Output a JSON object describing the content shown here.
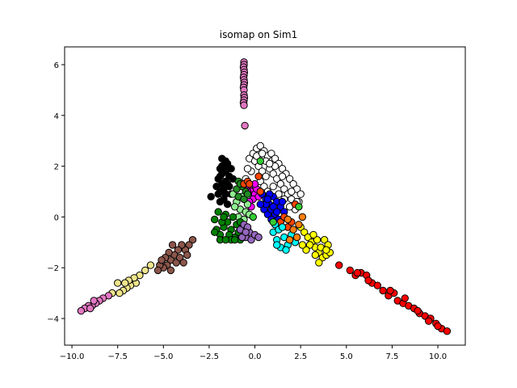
{
  "chart_data": {
    "type": "scatter",
    "title": "isomap on Sim1",
    "xlabel": "",
    "ylabel": "",
    "xlim": [
      -10.4,
      11.5
    ],
    "ylim": [
      -5.05,
      6.7
    ],
    "x_ticks": [
      -10.0,
      -7.5,
      -5.0,
      -2.5,
      0.0,
      2.5,
      5.0,
      7.5,
      10.0
    ],
    "x_tick_labels": [
      "−10.0",
      "−7.5",
      "−5.0",
      "−2.5",
      "0.0",
      "2.5",
      "5.0",
      "7.5",
      "10.0"
    ],
    "y_ticks": [
      -4,
      -2,
      0,
      2,
      4,
      6
    ],
    "y_tick_labels": [
      "−4",
      "−2",
      "0",
      "2",
      "4",
      "6"
    ],
    "grid": false,
    "legend": false,
    "marker_edge_color": "#000000",
    "clusters": [
      {
        "color": "#e377c2",
        "points": [
          [
            -0.6,
            6.1
          ],
          [
            -0.6,
            6.0
          ],
          [
            -0.62,
            5.9
          ],
          [
            -0.6,
            5.8
          ],
          [
            -0.58,
            5.7
          ],
          [
            -0.6,
            5.6
          ],
          [
            -0.62,
            5.5
          ],
          [
            -0.6,
            5.4
          ],
          [
            -0.58,
            5.3
          ],
          [
            -0.6,
            5.2
          ],
          [
            -0.62,
            5.1
          ],
          [
            -0.6,
            5.0
          ],
          [
            -0.6,
            4.8
          ],
          [
            -0.58,
            4.7
          ],
          [
            -0.6,
            4.6
          ],
          [
            -0.62,
            4.5
          ],
          [
            -0.6,
            4.4
          ],
          [
            -0.55,
            3.6
          ]
        ]
      },
      {
        "color": "#ffffff",
        "points": [
          [
            -0.3,
            2.3
          ],
          [
            -0.1,
            2.5
          ],
          [
            0.1,
            2.7
          ],
          [
            0.3,
            2.8
          ],
          [
            0.5,
            2.6
          ],
          [
            0.7,
            2.4
          ],
          [
            0.9,
            2.5
          ],
          [
            1.1,
            2.3
          ],
          [
            1.3,
            2.1
          ],
          [
            1.5,
            1.9
          ],
          [
            1.7,
            1.7
          ],
          [
            1.9,
            1.5
          ],
          [
            2.1,
            1.3
          ],
          [
            2.3,
            1.1
          ],
          [
            2.5,
            0.9
          ],
          [
            2.4,
            0.6
          ],
          [
            2.2,
            0.3
          ],
          [
            0.0,
            2.2
          ],
          [
            0.2,
            2.0
          ],
          [
            0.4,
            1.8
          ],
          [
            0.6,
            1.6
          ],
          [
            0.8,
            1.9
          ],
          [
            1.0,
            1.7
          ],
          [
            1.2,
            1.5
          ],
          [
            1.4,
            1.3
          ],
          [
            1.6,
            1.1
          ],
          [
            1.8,
            0.9
          ],
          [
            2.0,
            0.7
          ],
          [
            -0.2,
            1.8
          ],
          [
            0.3,
            1.4
          ],
          [
            0.5,
            1.2
          ],
          [
            0.7,
            1.0
          ],
          [
            1.0,
            1.2
          ],
          [
            1.3,
            0.9
          ],
          [
            1.6,
            0.7
          ],
          [
            1.9,
            0.4
          ],
          [
            0.1,
            2.4
          ],
          [
            0.6,
            2.2
          ],
          [
            1.1,
            2.0
          ],
          [
            0.4,
            2.5
          ],
          [
            0.8,
            2.1
          ],
          [
            1.5,
            1.6
          ],
          [
            2.0,
            1.0
          ],
          [
            2.3,
            0.6
          ],
          [
            -0.4,
            1.9
          ],
          [
            -0.5,
            1.5
          ]
        ]
      },
      {
        "color": "#000000",
        "points": [
          [
            -2.1,
            1.2
          ],
          [
            -1.9,
            1.6
          ],
          [
            -1.8,
            2.0
          ],
          [
            -1.8,
            2.3
          ],
          [
            -1.7,
            1.9
          ],
          [
            -1.6,
            1.4
          ],
          [
            -1.9,
            1.0
          ],
          [
            -2.0,
            0.9
          ],
          [
            -1.7,
            1.1
          ],
          [
            -1.6,
            1.8
          ],
          [
            -1.5,
            2.1
          ],
          [
            -1.4,
            1.6
          ],
          [
            -1.8,
            1.3
          ],
          [
            -2.0,
            1.5
          ],
          [
            -1.7,
            0.7
          ],
          [
            -1.5,
            0.5
          ],
          [
            -1.9,
            0.6
          ],
          [
            -1.6,
            0.9
          ],
          [
            -1.4,
            1.2
          ],
          [
            -1.3,
            1.9
          ],
          [
            -2.4,
            0.8
          ],
          [
            -1.2,
            1.5
          ],
          [
            -1.3,
            0.9
          ],
          [
            -1.5,
            1.3
          ],
          [
            -1.8,
            1.7
          ],
          [
            -1.6,
            2.2
          ],
          [
            -1.9,
            1.9
          ]
        ]
      },
      {
        "color": "#ff00ff",
        "points": [
          [
            -0.3,
            1.2
          ],
          [
            -0.2,
            1.0
          ],
          [
            0.0,
            0.9
          ],
          [
            -0.1,
            0.7
          ],
          [
            -0.3,
            0.6
          ],
          [
            0.1,
            1.1
          ],
          [
            0.0,
            1.3
          ],
          [
            -0.4,
            1.0
          ],
          [
            -0.2,
            0.4
          ],
          [
            0.2,
            0.8
          ]
        ]
      },
      {
        "color": "#0000ff",
        "points": [
          [
            0.4,
            0.9
          ],
          [
            0.6,
            0.7
          ],
          [
            0.8,
            0.5
          ],
          [
            1.0,
            0.8
          ],
          [
            1.2,
            0.6
          ],
          [
            1.4,
            0.4
          ],
          [
            1.6,
            0.2
          ],
          [
            0.5,
            0.3
          ],
          [
            0.7,
            0.1
          ],
          [
            0.9,
            0.3
          ],
          [
            1.1,
            0.1
          ],
          [
            1.3,
            -0.1
          ],
          [
            0.6,
            0.5
          ],
          [
            0.8,
            0.9
          ],
          [
            1.0,
            0.4
          ],
          [
            0.3,
            0.5
          ],
          [
            1.2,
            0.2
          ],
          [
            0.9,
            -0.1
          ],
          [
            1.5,
            0.6
          ],
          [
            0.7,
            0.7
          ]
        ]
      },
      {
        "color": "#90ee90",
        "points": [
          [
            -1.2,
            0.9
          ],
          [
            -1.0,
            0.6
          ],
          [
            -0.8,
            0.3
          ],
          [
            -0.5,
            0.2
          ],
          [
            -0.9,
            0.0
          ],
          [
            -0.6,
            -0.1
          ],
          [
            -1.1,
            0.4
          ],
          [
            -0.4,
            0.5
          ],
          [
            -0.7,
            0.8
          ],
          [
            -0.3,
            0.1
          ]
        ]
      },
      {
        "color": "#228b22",
        "points": [
          [
            -0.9,
            1.4
          ],
          [
            -0.7,
            1.2
          ],
          [
            -0.5,
            1.0
          ],
          [
            -0.9,
            0.8
          ],
          [
            -1.0,
            1.1
          ],
          [
            -0.6,
            0.7
          ],
          [
            -0.8,
            1.3
          ],
          [
            -0.4,
            0.9
          ]
        ]
      },
      {
        "color": "#ff4500",
        "points": [
          [
            -0.6,
            1.3
          ],
          [
            -0.4,
            1.4
          ],
          [
            -0.3,
            1.3
          ],
          [
            0.2,
            1.6
          ],
          [
            0.3,
            1.0
          ],
          [
            1.4,
            -0.2
          ],
          [
            1.6,
            0.0
          ],
          [
            2.2,
            0.5
          ],
          [
            1.8,
            -0.4
          ],
          [
            2.0,
            -0.2
          ]
        ]
      },
      {
        "color": "#00ffff",
        "points": [
          [
            1.0,
            -0.6
          ],
          [
            1.2,
            -0.9
          ],
          [
            1.4,
            -1.2
          ],
          [
            1.6,
            -0.8
          ],
          [
            1.8,
            -1.1
          ],
          [
            2.0,
            -0.7
          ],
          [
            1.1,
            -0.3
          ],
          [
            1.3,
            -0.5
          ],
          [
            2.2,
            -1.0
          ],
          [
            1.5,
            -0.4
          ],
          [
            1.7,
            -1.3
          ],
          [
            1.2,
            -1.1
          ]
        ]
      },
      {
        "color": "#008000",
        "points": [
          [
            -2.0,
            0.2
          ],
          [
            -2.2,
            -0.1
          ],
          [
            -2.1,
            -0.5
          ],
          [
            -1.9,
            -0.7
          ],
          [
            -1.7,
            -0.4
          ],
          [
            -1.5,
            -0.2
          ],
          [
            -1.3,
            -0.5
          ],
          [
            -1.1,
            -0.8
          ],
          [
            -1.0,
            -0.3
          ],
          [
            -1.2,
            0.0
          ],
          [
            -1.6,
            0.1
          ],
          [
            -1.8,
            -0.2
          ],
          [
            -1.4,
            -0.7
          ],
          [
            -0.9,
            -0.6
          ],
          [
            -1.9,
            -0.9
          ],
          [
            -1.3,
            -0.9
          ],
          [
            -0.8,
            -0.9
          ],
          [
            -1.6,
            -0.9
          ],
          [
            -2.2,
            -0.6
          ],
          [
            -0.8,
            -0.2
          ],
          [
            -1.1,
            -0.9
          ],
          [
            -1.7,
            0.0
          ]
        ]
      },
      {
        "color": "#9467bd",
        "points": [
          [
            -0.8,
            -0.5
          ],
          [
            -0.5,
            -0.8
          ],
          [
            -0.3,
            -0.6
          ],
          [
            -0.6,
            -0.3
          ],
          [
            -0.2,
            -0.9
          ],
          [
            -0.4,
            -0.4
          ],
          [
            -0.7,
            -0.8
          ],
          [
            0.0,
            -0.7
          ],
          [
            0.2,
            -0.8
          ],
          [
            -0.5,
            -0.6
          ]
        ]
      },
      {
        "color": "#ffff00",
        "points": [
          [
            2.5,
            -0.4
          ],
          [
            2.7,
            -0.6
          ],
          [
            2.9,
            -0.8
          ],
          [
            3.1,
            -1.0
          ],
          [
            3.3,
            -1.2
          ],
          [
            3.5,
            -1.4
          ],
          [
            3.7,
            -1.6
          ],
          [
            3.9,
            -1.5
          ],
          [
            3.6,
            -1.2
          ],
          [
            3.4,
            -0.9
          ],
          [
            3.2,
            -0.7
          ],
          [
            3.0,
            -1.1
          ],
          [
            2.8,
            -1.3
          ],
          [
            3.8,
            -0.9
          ],
          [
            4.0,
            -1.1
          ],
          [
            4.1,
            -1.4
          ],
          [
            3.5,
            -1.8
          ],
          [
            2.6,
            -1.1
          ],
          [
            3.3,
            -1.5
          ],
          [
            3.9,
            -1.3
          ]
        ]
      },
      {
        "color": "#ff7f0e",
        "points": [
          [
            1.8,
            -0.1
          ],
          [
            2.1,
            -0.5
          ],
          [
            2.4,
            -0.3
          ],
          [
            1.9,
            -0.9
          ],
          [
            2.3,
            -0.8
          ],
          [
            2.6,
            0.0
          ]
        ]
      },
      {
        "color": "#32cd32",
        "points": [
          [
            2.4,
            0.4
          ],
          [
            0.3,
            2.2
          ],
          [
            -0.1,
            0.0
          ],
          [
            1.0,
            -0.2
          ]
        ]
      },
      {
        "color": "#ff0000",
        "points": [
          [
            4.6,
            -1.9
          ],
          [
            5.2,
            -2.1
          ],
          [
            5.5,
            -2.3
          ],
          [
            5.8,
            -2.2
          ],
          [
            6.1,
            -2.3
          ],
          [
            6.4,
            -2.6
          ],
          [
            6.7,
            -2.7
          ],
          [
            7.0,
            -2.9
          ],
          [
            7.3,
            -3.1
          ],
          [
            7.6,
            -3.0
          ],
          [
            7.8,
            -3.3
          ],
          [
            8.1,
            -3.4
          ],
          [
            8.4,
            -3.5
          ],
          [
            8.7,
            -3.6
          ],
          [
            9.0,
            -3.8
          ],
          [
            9.3,
            -3.9
          ],
          [
            9.6,
            -4.0
          ],
          [
            9.9,
            -4.2
          ],
          [
            10.2,
            -4.4
          ],
          [
            10.5,
            -4.5
          ],
          [
            7.4,
            -2.9
          ],
          [
            8.2,
            -3.2
          ],
          [
            8.9,
            -3.7
          ],
          [
            9.5,
            -4.1
          ],
          [
            10.0,
            -4.3
          ],
          [
            6.2,
            -2.5
          ],
          [
            5.6,
            -2.2
          ]
        ]
      },
      {
        "color": "#8c564b",
        "points": [
          [
            -3.4,
            -0.9
          ],
          [
            -3.6,
            -1.1
          ],
          [
            -3.8,
            -1.3
          ],
          [
            -4.0,
            -1.1
          ],
          [
            -4.2,
            -1.3
          ],
          [
            -4.4,
            -1.5
          ],
          [
            -4.6,
            -1.7
          ],
          [
            -4.8,
            -1.9
          ],
          [
            -5.0,
            -2.0
          ],
          [
            -5.2,
            -1.9
          ],
          [
            -4.7,
            -1.4
          ],
          [
            -4.5,
            -1.1
          ],
          [
            -4.9,
            -1.6
          ],
          [
            -5.3,
            -2.1
          ],
          [
            -4.3,
            -1.8
          ],
          [
            -4.1,
            -1.6
          ],
          [
            -3.9,
            -1.8
          ],
          [
            -5.1,
            -1.7
          ],
          [
            -4.6,
            -2.1
          ],
          [
            -3.7,
            -1.5
          ]
        ]
      },
      {
        "color": "#f0e68c",
        "points": [
          [
            -5.7,
            -1.9
          ],
          [
            -6.0,
            -2.1
          ],
          [
            -6.3,
            -2.3
          ],
          [
            -6.5,
            -2.6
          ],
          [
            -6.8,
            -2.7
          ],
          [
            -7.0,
            -2.8
          ],
          [
            -7.2,
            -2.9
          ],
          [
            -7.5,
            -2.6
          ],
          [
            -7.4,
            -3.0
          ],
          [
            -7.8,
            -3.0
          ],
          [
            -6.6,
            -2.4
          ],
          [
            -6.9,
            -2.5
          ],
          [
            -7.1,
            -2.6
          ]
        ]
      },
      {
        "color": "#e377c2",
        "points": [
          [
            -8.0,
            -3.1
          ],
          [
            -8.3,
            -3.2
          ],
          [
            -8.5,
            -3.3
          ],
          [
            -8.7,
            -3.4
          ],
          [
            -8.9,
            -3.5
          ],
          [
            -9.1,
            -3.5
          ],
          [
            -9.3,
            -3.6
          ],
          [
            -9.5,
            -3.7
          ],
          [
            -8.8,
            -3.3
          ],
          [
            -9.0,
            -3.6
          ]
        ]
      }
    ]
  }
}
